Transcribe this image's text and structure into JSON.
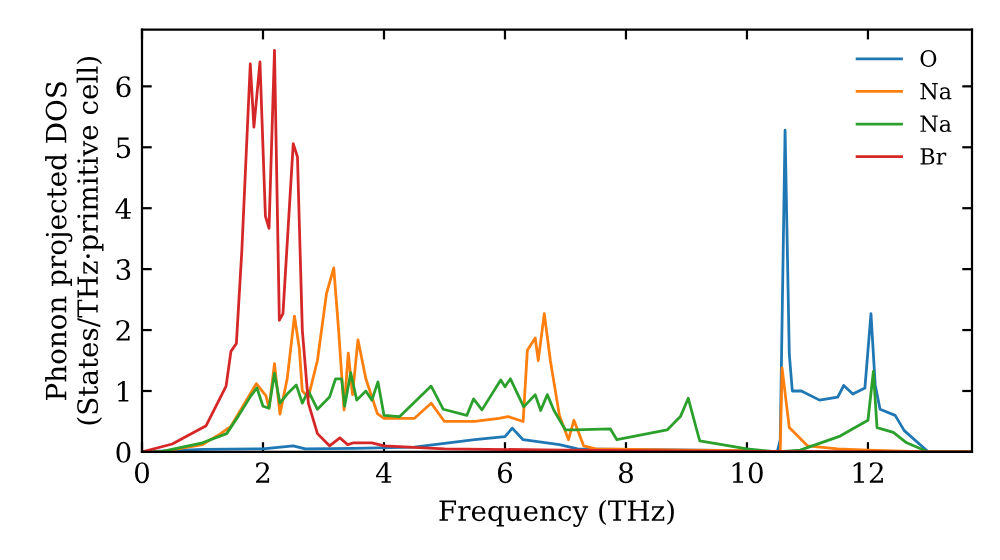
{
  "chart_data": {
    "type": "line",
    "xlabel": "Frequency (THz)",
    "ylabel": "Phonon projected DOS\n(States/THz·primitive cell)",
    "xlim": [
      0,
      13.72
    ],
    "ylim": [
      0,
      6.93
    ],
    "xticks": [
      0,
      2,
      4,
      6,
      8,
      10,
      12
    ],
    "yticks": [
      0,
      1,
      2,
      3,
      4,
      5,
      6
    ],
    "legend": "top right",
    "grid": false,
    "series": [
      {
        "name": "O",
        "color": "#1f77b4",
        "x": [
          0,
          0.5,
          1.0,
          2.0,
          2.5,
          2.7,
          3.5,
          4.5,
          5.5,
          6.0,
          6.12,
          6.3,
          6.9,
          7.2,
          10.0,
          10.5,
          10.55,
          10.63,
          10.7,
          10.75,
          10.9,
          11.2,
          11.5,
          11.6,
          11.75,
          11.95,
          12.05,
          12.12,
          12.2,
          12.45,
          12.6,
          13.0,
          13.72
        ],
        "values": [
          0,
          0.02,
          0.04,
          0.05,
          0.1,
          0.05,
          0.06,
          0.08,
          0.2,
          0.25,
          0.39,
          0.2,
          0.12,
          0.05,
          0.02,
          0,
          0.2,
          5.28,
          1.6,
          1.0,
          1.0,
          0.85,
          0.9,
          1.09,
          0.95,
          1.05,
          2.27,
          1.1,
          0.7,
          0.6,
          0.35,
          0,
          0
        ]
      },
      {
        "name": "Na",
        "color": "#ff7f0e",
        "x": [
          0,
          0.3,
          1.0,
          1.3,
          1.47,
          1.89,
          2.05,
          2.1,
          2.19,
          2.28,
          2.4,
          2.52,
          2.6,
          2.65,
          2.75,
          2.9,
          3.05,
          3.17,
          3.25,
          3.34,
          3.41,
          3.48,
          3.57,
          3.7,
          3.89,
          4.0,
          4.5,
          4.78,
          5.0,
          5.5,
          5.9,
          6.05,
          6.3,
          6.37,
          6.5,
          6.55,
          6.65,
          6.75,
          6.9,
          7.05,
          7.14,
          7.3,
          7.5,
          9.0,
          10.0,
          10.5,
          10.55,
          10.58,
          10.7,
          11.0,
          11.5,
          12.0,
          13.0,
          13.72
        ],
        "values": [
          0,
          0,
          0.12,
          0.3,
          0.42,
          1.12,
          0.92,
          0.72,
          1.45,
          0.62,
          1.2,
          2.23,
          1.7,
          1.0,
          0.9,
          1.5,
          2.6,
          3.02,
          2.0,
          0.69,
          1.62,
          0.94,
          1.84,
          1.2,
          0.63,
          0.55,
          0.55,
          0.8,
          0.5,
          0.5,
          0.55,
          0.58,
          0.5,
          1.67,
          1.87,
          1.5,
          2.27,
          1.5,
          0.6,
          0.2,
          0.52,
          0.1,
          0.05,
          0.03,
          0.02,
          0,
          0,
          1.38,
          0.4,
          0.1,
          0.05,
          0.03,
          0,
          0
        ]
      },
      {
        "name": "Na",
        "color": "#2ca02c",
        "x": [
          0,
          0.3,
          1.0,
          1.4,
          1.6,
          1.8,
          1.9,
          2.0,
          2.1,
          2.19,
          2.28,
          2.4,
          2.55,
          2.65,
          2.75,
          2.9,
          3.1,
          3.2,
          3.3,
          3.35,
          3.45,
          3.55,
          3.7,
          3.8,
          3.9,
          4.0,
          4.26,
          4.78,
          4.98,
          5.37,
          5.48,
          5.62,
          5.93,
          6.0,
          6.09,
          6.31,
          6.5,
          6.59,
          6.7,
          6.81,
          7.0,
          7.14,
          7.74,
          7.85,
          8.68,
          8.9,
          9.03,
          9.17,
          9.22,
          10.0,
          10.5,
          10.88,
          11.54,
          12.0,
          12.09,
          12.15,
          12.42,
          12.64,
          12.92,
          13.0,
          13.72
        ],
        "values": [
          0,
          0,
          0.15,
          0.3,
          0.6,
          0.92,
          1.05,
          0.75,
          0.72,
          1.29,
          0.8,
          0.95,
          1.1,
          0.8,
          1.0,
          0.7,
          0.9,
          1.2,
          1.2,
          0.75,
          1.3,
          0.85,
          1.0,
          0.85,
          1.15,
          0.6,
          0.58,
          1.08,
          0.7,
          0.6,
          0.87,
          0.69,
          1.18,
          1.07,
          1.2,
          0.74,
          0.94,
          0.68,
          0.94,
          0.68,
          0.36,
          0.36,
          0.38,
          0.2,
          0.36,
          0.58,
          0.88,
          0.36,
          0.18,
          0.05,
          0,
          0.03,
          0.26,
          0.52,
          1.32,
          0.4,
          0.32,
          0.15,
          0.03,
          0,
          0
        ]
      },
      {
        "name": "Br",
        "color": "#d62728",
        "x": [
          0,
          0.5,
          1.06,
          1.39,
          1.47,
          1.56,
          1.65,
          1.79,
          1.85,
          1.95,
          2.04,
          2.1,
          2.19,
          2.27,
          2.33,
          2.5,
          2.57,
          2.65,
          2.75,
          2.9,
          3.1,
          3.27,
          3.4,
          3.5,
          3.8,
          4.0,
          5.0,
          7.0,
          10.0,
          13.0,
          13.72
        ],
        "values": [
          0,
          0.13,
          0.43,
          1.08,
          1.65,
          1.78,
          3.3,
          6.37,
          5.33,
          6.4,
          3.87,
          3.67,
          6.59,
          2.16,
          2.27,
          5.06,
          4.84,
          2.0,
          0.8,
          0.3,
          0.1,
          0.23,
          0.12,
          0.15,
          0.15,
          0.1,
          0.05,
          0.03,
          0.01,
          0,
          0
        ]
      }
    ]
  }
}
